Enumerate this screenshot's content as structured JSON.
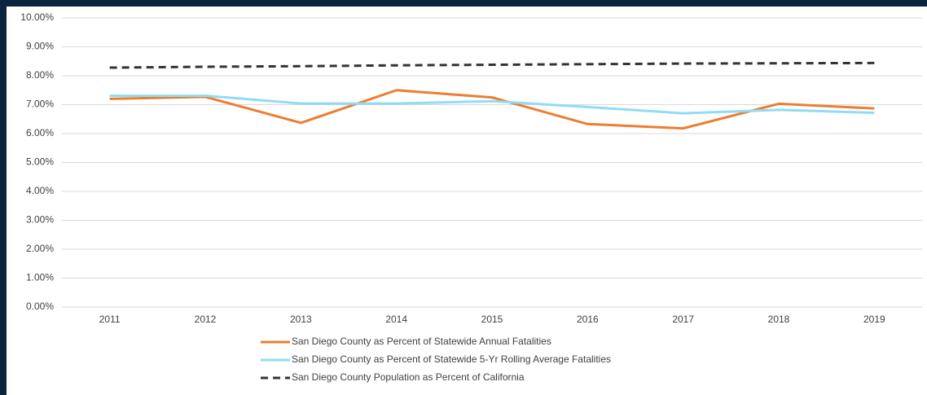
{
  "chart_data": {
    "type": "line",
    "categories": [
      "2011",
      "2012",
      "2013",
      "2014",
      "2015",
      "2016",
      "2017",
      "2018",
      "2019"
    ],
    "series": [
      {
        "name": "San Diego County as Percent of Statewide Annual Fatalities",
        "color": "#ed7d31",
        "style": "solid",
        "values": [
          7.2,
          7.27,
          6.37,
          7.5,
          7.25,
          6.33,
          6.18,
          7.03,
          6.87
        ]
      },
      {
        "name": "San Diego County as Percent of Statewide 5-Yr Rolling Average Fatalities",
        "color": "#8fdcf7",
        "style": "solid",
        "values": [
          7.31,
          7.31,
          7.04,
          7.04,
          7.12,
          6.92,
          6.7,
          6.82,
          6.72
        ]
      },
      {
        "name": "San Diego County Population as Percent of California",
        "color": "#333333",
        "style": "dashed",
        "values": [
          8.28,
          8.31,
          8.33,
          8.36,
          8.38,
          8.4,
          8.42,
          8.43,
          8.44
        ]
      }
    ],
    "ylim": [
      0,
      10
    ],
    "yticks": [
      {
        "value": 0,
        "label": "0.00%"
      },
      {
        "value": 1,
        "label": "1.00%"
      },
      {
        "value": 2,
        "label": "2.00%"
      },
      {
        "value": 3,
        "label": "3.00%"
      },
      {
        "value": 4,
        "label": "4.00%"
      },
      {
        "value": 5,
        "label": "5.00%"
      },
      {
        "value": 6,
        "label": "6.00%"
      },
      {
        "value": 7,
        "label": "7.00%"
      },
      {
        "value": 8,
        "label": "8.00%"
      },
      {
        "value": 9,
        "label": "9.00%"
      },
      {
        "value": 10,
        "label": "10.00%"
      }
    ],
    "grid": true,
    "legend": "bottom"
  }
}
